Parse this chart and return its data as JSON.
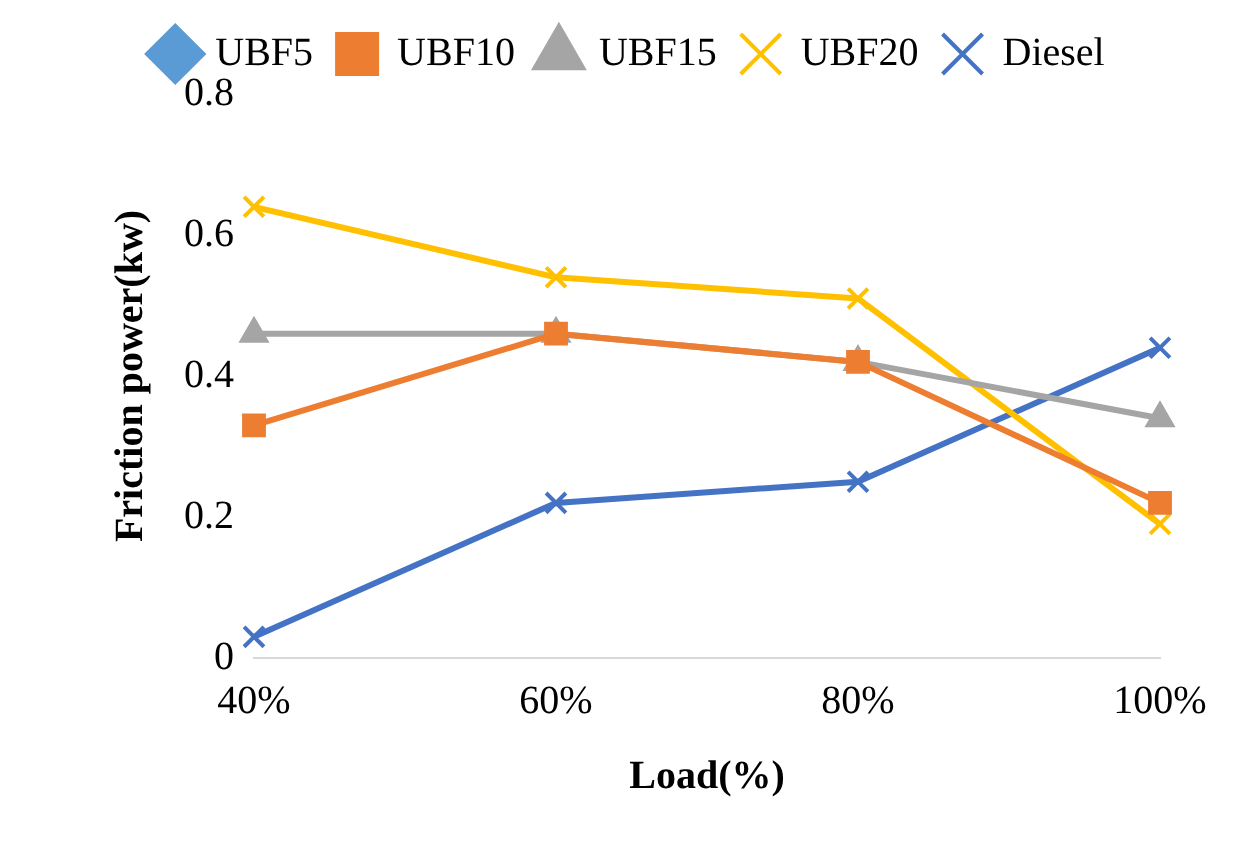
{
  "chart_data": {
    "type": "line",
    "xlabel": "Load(%)",
    "ylabel": "Friction power(kw)",
    "categories": [
      "40%",
      "60%",
      "80%",
      "100%"
    ],
    "ylim": [
      0,
      0.8
    ],
    "yticks": [
      0,
      0.2,
      0.4,
      0.6,
      0.8
    ],
    "grid": false,
    "legend": "top",
    "line_style": "solid",
    "series": [
      {
        "name": "UBF5",
        "color": "#5b9bd5",
        "marker": "diamond",
        "values": [
          null,
          null,
          null,
          null
        ]
      },
      {
        "name": "UBF10",
        "color": "#ed7d31",
        "marker": "square",
        "values": [
          0.33,
          0.46,
          0.42,
          0.22
        ]
      },
      {
        "name": "UBF15",
        "color": "#a5a5a5",
        "marker": "triangle",
        "values": [
          0.46,
          0.46,
          0.42,
          0.34
        ]
      },
      {
        "name": "UBF20",
        "color": "#ffc000",
        "marker": "cross",
        "values": [
          0.64,
          0.54,
          0.51,
          0.19
        ]
      },
      {
        "name": "Diesel",
        "color": "#4472c4",
        "marker": "cross",
        "values": [
          0.03,
          0.22,
          0.25,
          0.44
        ]
      }
    ]
  }
}
